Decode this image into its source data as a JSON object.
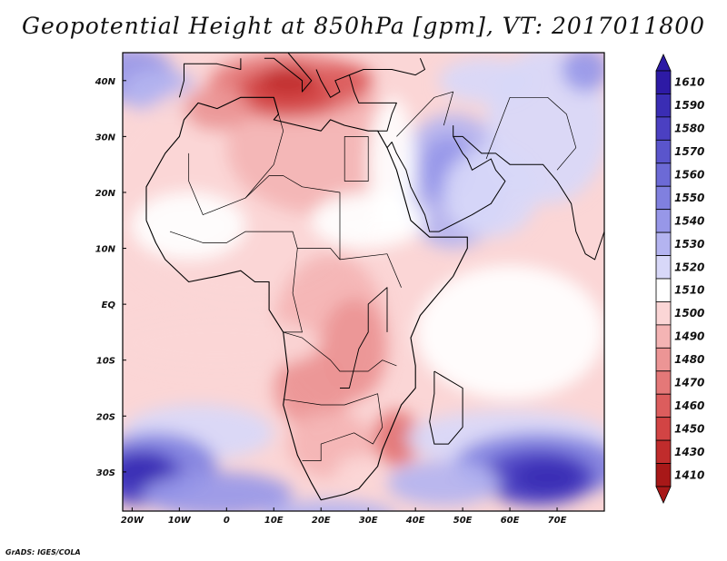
{
  "title": "Geopotential Height at 850hPa [gpm], VT: 2017011800",
  "credit": "GrADS: IGES/COLA",
  "chart_data": {
    "type": "filled-contour map",
    "variable": "Geopotential Height",
    "level": "850hPa",
    "units": "gpm",
    "valid_time": "2017011800",
    "lon_range": [
      -22,
      80
    ],
    "lat_range": [
      -37,
      45
    ],
    "lon_ticks": [
      {
        "value": -20,
        "label": "20W"
      },
      {
        "value": -10,
        "label": "10W"
      },
      {
        "value": 0,
        "label": "0"
      },
      {
        "value": 10,
        "label": "10E"
      },
      {
        "value": 20,
        "label": "20E"
      },
      {
        "value": 30,
        "label": "30E"
      },
      {
        "value": 40,
        "label": "40E"
      },
      {
        "value": 50,
        "label": "50E"
      },
      {
        "value": 60,
        "label": "60E"
      },
      {
        "value": 70,
        "label": "70E"
      }
    ],
    "lat_ticks": [
      {
        "value": 40,
        "label": "40N"
      },
      {
        "value": 30,
        "label": "30N"
      },
      {
        "value": 20,
        "label": "20N"
      },
      {
        "value": 10,
        "label": "10N"
      },
      {
        "value": 0,
        "label": "EQ"
      },
      {
        "value": -10,
        "label": "10S"
      },
      {
        "value": -20,
        "label": "20S"
      },
      {
        "value": -30,
        "label": "30S"
      }
    ],
    "colorbar": [
      {
        "label": "1610",
        "color": "#2d1aa5"
      },
      {
        "label": "1590",
        "color": "#3a2db4"
      },
      {
        "label": "1580",
        "color": "#4b40c2"
      },
      {
        "label": "1570",
        "color": "#5a55cc"
      },
      {
        "label": "1560",
        "color": "#6c6ad6"
      },
      {
        "label": "1550",
        "color": "#8080df"
      },
      {
        "label": "1540",
        "color": "#9797e8"
      },
      {
        "label": "1530",
        "color": "#b4b4f0"
      },
      {
        "label": "1520",
        "color": "#d8d8f8"
      },
      {
        "label": "1510",
        "color": "#ffffff"
      },
      {
        "label": "1500",
        "color": "#fbd6d6"
      },
      {
        "label": "1490",
        "color": "#f4b4b4"
      },
      {
        "label": "1480",
        "color": "#ec9595"
      },
      {
        "label": "1470",
        "color": "#e47878"
      },
      {
        "label": "1460",
        "color": "#dc5d5d"
      },
      {
        "label": "1450",
        "color": "#d24444"
      },
      {
        "label": "1430",
        "color": "#c02c2c"
      },
      {
        "label": "1410",
        "color": "#a81818"
      }
    ],
    "features": [
      {
        "name": "low-mediterranean-north-africa",
        "lon": 13,
        "lat": 37,
        "value": 1430
      },
      {
        "name": "low-southern-africa-mozambique-channel",
        "lon": 37,
        "lat": -24,
        "value": 1450
      },
      {
        "name": "low-central-africa",
        "lon": 22,
        "lat": -6,
        "value": 1480
      },
      {
        "name": "high-south-atlantic",
        "lon": -18,
        "lat": -32,
        "value": 1590
      },
      {
        "name": "high-south-indian-ocean",
        "lon": 65,
        "lat": -30,
        "value": 1590
      },
      {
        "name": "high-arabia",
        "lon": 45,
        "lat": 23,
        "value": 1530
      }
    ]
  }
}
